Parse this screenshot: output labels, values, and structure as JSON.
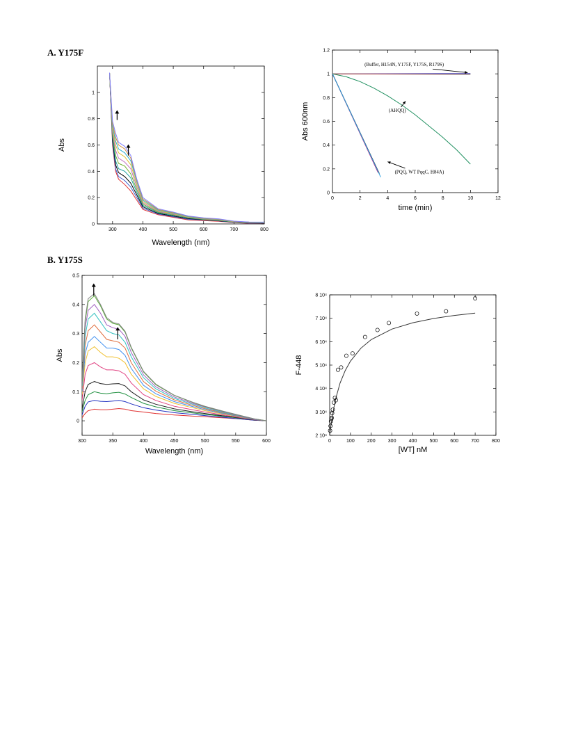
{
  "labels": {
    "panel_a": "A. Y175F",
    "panel_b": "B. Y175S"
  },
  "chart_data": [
    {
      "id": "a_spectra",
      "type": "line",
      "xlabel": "Wavelength (nm)",
      "ylabel": "Abs",
      "xlim": [
        250,
        800
      ],
      "ylim": [
        0,
        1.2
      ],
      "xticks": [
        300,
        400,
        500,
        600,
        700,
        800
      ],
      "yticks": [
        0,
        0.2,
        0.4,
        0.6,
        0.8,
        1
      ],
      "grid": false,
      "annotations": [
        {
          "kind": "arrow-up",
          "x": 315,
          "y_from": 0.79,
          "y_to": 0.86
        },
        {
          "kind": "arrow-up",
          "x": 352,
          "y_from": 0.52,
          "y_to": 0.6
        }
      ],
      "x": [
        290,
        300,
        310,
        320,
        340,
        360,
        380,
        400,
        450,
        500,
        550,
        600,
        650,
        700,
        750,
        800
      ],
      "series": [
        {
          "color": "#e03030",
          "values": [
            1.15,
            0.6,
            0.4,
            0.34,
            0.3,
            0.25,
            0.18,
            0.11,
            0.07,
            0.05,
            0.03,
            0.025,
            0.02,
            0.01,
            0.005,
            0.005
          ]
        },
        {
          "color": "#4060d0",
          "values": [
            1.15,
            0.62,
            0.42,
            0.36,
            0.33,
            0.28,
            0.2,
            0.12,
            0.075,
            0.055,
            0.035,
            0.03,
            0.022,
            0.012,
            0.006,
            0.006
          ]
        },
        {
          "color": "#000000",
          "values": [
            1.15,
            0.64,
            0.45,
            0.39,
            0.36,
            0.31,
            0.22,
            0.13,
            0.08,
            0.06,
            0.04,
            0.032,
            0.024,
            0.014,
            0.008,
            0.007
          ]
        },
        {
          "color": "#20a0a0",
          "values": [
            1.15,
            0.66,
            0.48,
            0.42,
            0.4,
            0.35,
            0.24,
            0.14,
            0.085,
            0.065,
            0.045,
            0.034,
            0.026,
            0.015,
            0.009,
            0.008
          ]
        },
        {
          "color": "#70b030",
          "values": [
            1.15,
            0.68,
            0.52,
            0.46,
            0.44,
            0.38,
            0.26,
            0.15,
            0.09,
            0.07,
            0.048,
            0.036,
            0.028,
            0.016,
            0.01,
            0.009
          ]
        },
        {
          "color": "#c070c0",
          "values": [
            1.15,
            0.7,
            0.56,
            0.5,
            0.47,
            0.42,
            0.28,
            0.16,
            0.095,
            0.074,
            0.05,
            0.038,
            0.03,
            0.017,
            0.011,
            0.01
          ]
        },
        {
          "color": "#e0c030",
          "values": [
            1.15,
            0.72,
            0.6,
            0.54,
            0.51,
            0.45,
            0.3,
            0.17,
            0.1,
            0.078,
            0.052,
            0.04,
            0.032,
            0.018,
            0.012,
            0.011
          ]
        },
        {
          "color": "#30b0d0",
          "values": [
            1.15,
            0.74,
            0.63,
            0.57,
            0.54,
            0.48,
            0.32,
            0.18,
            0.105,
            0.082,
            0.055,
            0.042,
            0.034,
            0.019,
            0.013,
            0.012
          ]
        },
        {
          "color": "#d09040",
          "values": [
            1.15,
            0.76,
            0.66,
            0.6,
            0.57,
            0.5,
            0.33,
            0.19,
            0.11,
            0.086,
            0.058,
            0.044,
            0.036,
            0.02,
            0.014,
            0.013
          ]
        },
        {
          "color": "#8080ff",
          "values": [
            1.15,
            0.78,
            0.69,
            0.62,
            0.59,
            0.52,
            0.34,
            0.2,
            0.115,
            0.09,
            0.06,
            0.046,
            0.038,
            0.021,
            0.015,
            0.014
          ]
        }
      ]
    },
    {
      "id": "a_kinetics",
      "type": "line",
      "xlabel": "time (min)",
      "ylabel": "Abs 600nm",
      "xlim": [
        0,
        12
      ],
      "ylim": [
        0,
        1.2
      ],
      "xticks": [
        0,
        2,
        4,
        6,
        8,
        10,
        12
      ],
      "yticks": [
        0,
        0.2,
        0.4,
        0.6,
        0.8,
        1,
        1.2
      ],
      "grid": false,
      "annotations": [
        {
          "text": "(Buffer, H154N, Y175F, Y175S, R179S)",
          "x": 5.2,
          "y": 1.065,
          "ax": 9.8,
          "ay": 1.01
        },
        {
          "text": "(AHQQ)",
          "x": 4.7,
          "y": 0.68,
          "ax": 5.3,
          "ay": 0.77
        },
        {
          "text": "(PQQ, WT PqqC, H84A)",
          "x": 6.3,
          "y": 0.16,
          "ax": 4.0,
          "ay": 0.26
        }
      ],
      "series": [
        {
          "color": "#e0a020",
          "x": [
            0,
            10
          ],
          "values": [
            1.0,
            1.0
          ]
        },
        {
          "color": "#3050d0",
          "x": [
            0,
            10
          ],
          "values": [
            1.0,
            1.003
          ]
        },
        {
          "color": "#30b0c0",
          "x": [
            0,
            10
          ],
          "values": [
            1.0,
            0.995
          ]
        },
        {
          "color": "#d04040",
          "x": [
            0,
            10
          ],
          "values": [
            1.0,
            0.998
          ]
        },
        {
          "color": "#209060",
          "x": [
            0,
            1,
            2,
            3,
            4,
            5,
            6,
            7,
            8,
            9,
            10
          ],
          "values": [
            1.0,
            0.975,
            0.935,
            0.88,
            0.815,
            0.74,
            0.655,
            0.56,
            0.465,
            0.36,
            0.24
          ]
        },
        {
          "color": "#c02080",
          "x": [
            0,
            3.3
          ],
          "values": [
            1.0,
            0.17
          ]
        },
        {
          "color": "#000000",
          "x": [
            0,
            3.4
          ],
          "values": [
            1.0,
            0.16
          ]
        },
        {
          "color": "#30a0e0",
          "x": [
            0,
            3.5
          ],
          "values": [
            1.0,
            0.13
          ]
        }
      ]
    },
    {
      "id": "b_spectra",
      "type": "line",
      "xlabel": "Wavelength (nm)",
      "ylabel": "Abs",
      "xlim": [
        300,
        600
      ],
      "ylim": [
        -0.05,
        0.5
      ],
      "xticks": [
        300,
        350,
        400,
        450,
        500,
        550,
        600
      ],
      "yticks": [
        0,
        0.1,
        0.2,
        0.3,
        0.4,
        0.5
      ],
      "grid": false,
      "annotations": [
        {
          "kind": "arrow-up",
          "x": 319,
          "y_from": 0.43,
          "y_to": 0.47
        },
        {
          "kind": "arrow-up",
          "x": 358,
          "y_from": 0.28,
          "y_to": 0.32
        }
      ],
      "x": [
        300,
        305,
        310,
        320,
        330,
        340,
        350,
        360,
        370,
        380,
        400,
        420,
        450,
        480,
        500,
        530,
        560,
        580,
        600
      ],
      "series": [
        {
          "color": "#e03030",
          "values": [
            0.01,
            0.025,
            0.035,
            0.04,
            0.038,
            0.038,
            0.04,
            0.042,
            0.04,
            0.035,
            0.03,
            0.025,
            0.02,
            0.016,
            0.014,
            0.01,
            0.006,
            0.002,
            0.0
          ]
        },
        {
          "color": "#2030c0",
          "values": [
            0.02,
            0.05,
            0.065,
            0.07,
            0.067,
            0.066,
            0.068,
            0.07,
            0.066,
            0.058,
            0.045,
            0.037,
            0.028,
            0.022,
            0.018,
            0.012,
            0.006,
            0.002,
            0.0
          ]
        },
        {
          "color": "#209040",
          "values": [
            0.03,
            0.07,
            0.09,
            0.1,
            0.095,
            0.093,
            0.096,
            0.098,
            0.092,
            0.08,
            0.06,
            0.048,
            0.035,
            0.027,
            0.022,
            0.015,
            0.008,
            0.003,
            0.0
          ]
        },
        {
          "color": "#202020",
          "values": [
            0.04,
            0.1,
            0.125,
            0.135,
            0.128,
            0.125,
            0.127,
            0.128,
            0.12,
            0.1,
            0.072,
            0.057,
            0.041,
            0.031,
            0.025,
            0.017,
            0.009,
            0.003,
            0.0
          ]
        },
        {
          "color": "#e04080",
          "values": [
            0.07,
            0.16,
            0.19,
            0.2,
            0.185,
            0.175,
            0.175,
            0.172,
            0.16,
            0.13,
            0.09,
            0.07,
            0.05,
            0.038,
            0.03,
            0.02,
            0.01,
            0.004,
            0.0
          ]
        },
        {
          "color": "#f0c030",
          "values": [
            0.09,
            0.2,
            0.24,
            0.255,
            0.235,
            0.22,
            0.22,
            0.215,
            0.2,
            0.16,
            0.11,
            0.084,
            0.06,
            0.045,
            0.035,
            0.023,
            0.012,
            0.005,
            0.0
          ]
        },
        {
          "color": "#4090f0",
          "values": [
            0.1,
            0.23,
            0.27,
            0.29,
            0.27,
            0.25,
            0.25,
            0.245,
            0.225,
            0.18,
            0.122,
            0.093,
            0.066,
            0.049,
            0.038,
            0.025,
            0.013,
            0.005,
            0.0
          ]
        },
        {
          "color": "#e07040",
          "values": [
            0.11,
            0.26,
            0.31,
            0.33,
            0.305,
            0.28,
            0.275,
            0.27,
            0.25,
            0.2,
            0.135,
            0.102,
            0.072,
            0.053,
            0.041,
            0.027,
            0.014,
            0.006,
            0.0
          ]
        },
        {
          "color": "#30c0c0",
          "values": [
            0.12,
            0.29,
            0.35,
            0.37,
            0.34,
            0.31,
            0.3,
            0.295,
            0.27,
            0.22,
            0.148,
            0.11,
            0.077,
            0.057,
            0.044,
            0.029,
            0.015,
            0.006,
            0.0
          ]
        },
        {
          "color": "#a060c0",
          "values": [
            0.13,
            0.32,
            0.38,
            0.4,
            0.37,
            0.33,
            0.32,
            0.315,
            0.29,
            0.235,
            0.158,
            0.117,
            0.082,
            0.06,
            0.047,
            0.031,
            0.016,
            0.006,
            0.0
          ]
        },
        {
          "color": "#60b040",
          "values": [
            0.135,
            0.34,
            0.41,
            0.43,
            0.395,
            0.35,
            0.335,
            0.33,
            0.305,
            0.25,
            0.168,
            0.124,
            0.087,
            0.063,
            0.049,
            0.032,
            0.017,
            0.007,
            0.0
          ]
        },
        {
          "color": "#808080",
          "values": [
            0.14,
            0.35,
            0.42,
            0.437,
            0.4,
            0.355,
            0.338,
            0.333,
            0.308,
            0.253,
            0.17,
            0.126,
            0.088,
            0.064,
            0.05,
            0.033,
            0.017,
            0.007,
            0.0
          ]
        }
      ]
    },
    {
      "id": "b_binding",
      "type": "scatter",
      "xlabel": "[WT] nM",
      "ylabel": "F-448",
      "xlim": [
        0,
        800
      ],
      "ylim": [
        20000,
        80000
      ],
      "xticks": [
        0,
        100,
        200,
        300,
        400,
        500,
        600,
        700,
        800
      ],
      "ytick_values": [
        20000,
        30000,
        40000,
        50000,
        60000,
        70000,
        80000
      ],
      "ytick_labels": [
        "2 10⁴",
        "3 10⁴",
        "4 10⁴",
        "5 10⁴",
        "6 10⁴",
        "7 10⁴",
        "8 10⁴"
      ],
      "grid": false,
      "points": {
        "x": [
          2,
          4,
          6,
          8,
          10,
          12,
          15,
          20,
          25,
          30,
          40,
          55,
          80,
          110,
          170,
          230,
          285,
          420,
          560,
          700
        ],
        "y": [
          22000,
          24000,
          26000,
          27000,
          27500,
          29500,
          31000,
          34000,
          36000,
          35000,
          48000,
          49000,
          54000,
          55000,
          62000,
          65000,
          68000,
          72000,
          73000,
          78500
        ]
      },
      "fit": {
        "x": [
          0,
          5,
          10,
          20,
          30,
          50,
          75,
          100,
          150,
          200,
          300,
          400,
          500,
          600,
          700
        ],
        "y": [
          20000,
          23500,
          26500,
          31800,
          36000,
          42300,
          47700,
          51700,
          57200,
          60900,
          65400,
          68100,
          69900,
          71200,
          72200
        ]
      }
    }
  ]
}
